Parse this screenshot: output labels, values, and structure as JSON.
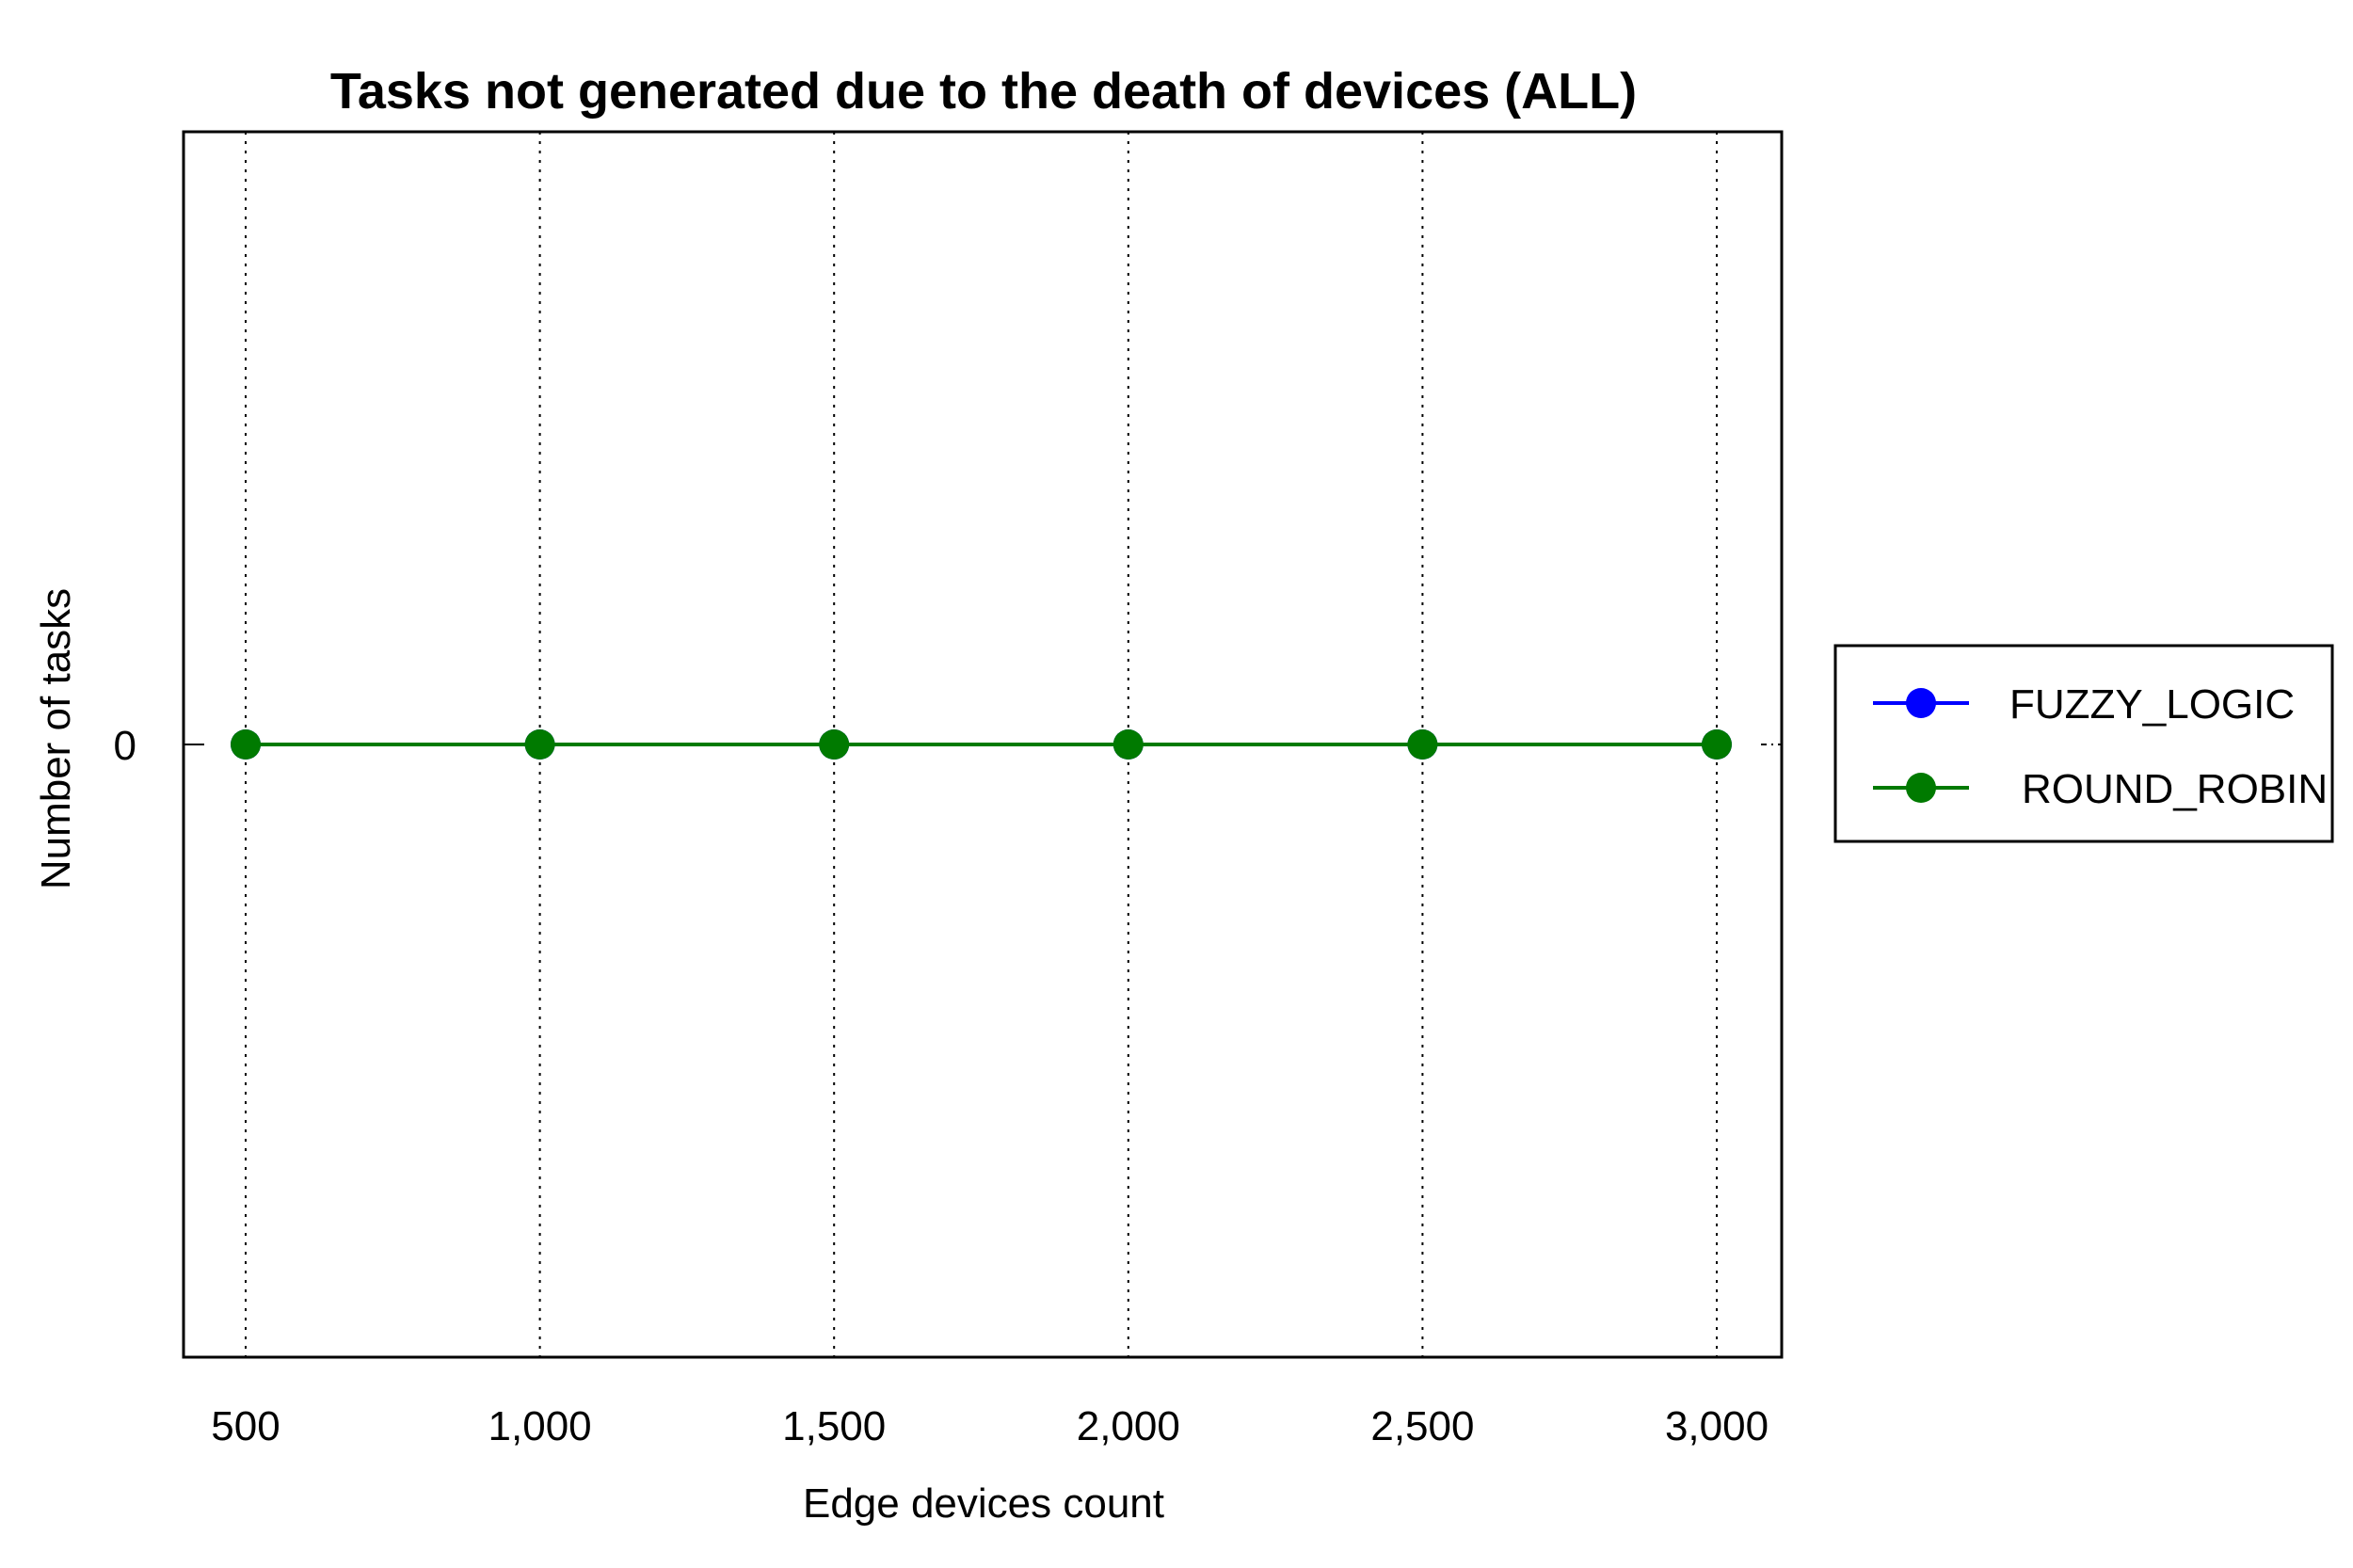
{
  "chart_data": {
    "type": "line",
    "title": "Tasks not generated due to the death of devices (ALL)",
    "xlabel": "Edge devices count",
    "ylabel": "Number of tasks",
    "x": [
      500,
      1000,
      1500,
      2000,
      2500,
      3000
    ],
    "x_tick_labels": [
      "500",
      "1,000",
      "1,500",
      "2,000",
      "2,500",
      "3,000"
    ],
    "y_ticks": [
      0
    ],
    "y_tick_labels": [
      "0"
    ],
    "ylim": [
      -1,
      1
    ],
    "grid": {
      "x": true,
      "y": false,
      "style": "dotted"
    },
    "legend_position": "right",
    "series": [
      {
        "name": "FUZZY_LOGIC",
        "color": "#0000ff",
        "marker": "circle",
        "values": [
          0,
          0,
          0,
          0,
          0,
          0
        ]
      },
      {
        "name": "ROUND_ROBIN",
        "color": "#007a00",
        "marker": "circle",
        "values": [
          0,
          0,
          0,
          0,
          0,
          0
        ]
      }
    ]
  }
}
